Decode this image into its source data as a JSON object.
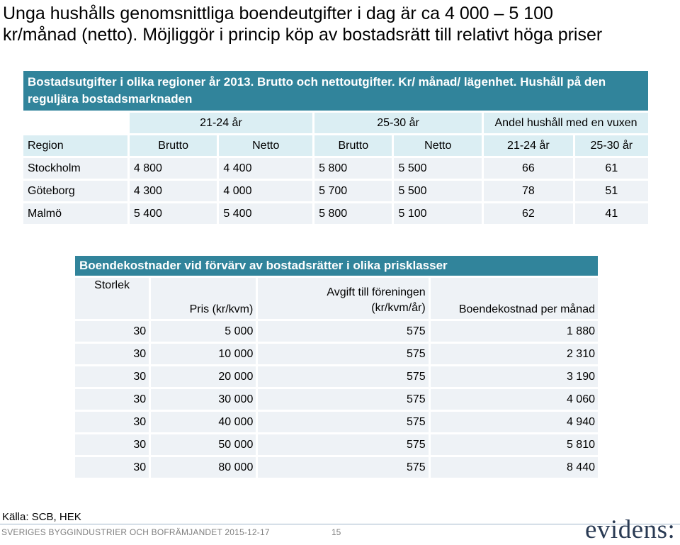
{
  "title": {
    "line1": "Unga hushålls genomsnittliga boendeutgifter i dag är ca 4 000 – 5 100",
    "line2": "kr/månad (netto). Möjliggör i princip köp av bostadsrätt till relativt höga priser"
  },
  "table1": {
    "caption": "Bostadsutgifter i olika regioner år 2013. Brutto och nettoutgifter. Kr/ månad/ lägenhet. Hushåll på den reguljära bostadsmarknaden",
    "group_headers": [
      "21-24 år",
      "25-30 år",
      "Andel hushåll med en vuxen"
    ],
    "columns": [
      "Region",
      "Brutto",
      "Netto",
      "Brutto",
      "Netto",
      "21-24 år",
      "25-30 år"
    ],
    "rows": [
      [
        "Stockholm",
        "4 800",
        "4 400",
        "5 800",
        "5 500",
        "66",
        "61"
      ],
      [
        "Göteborg",
        "4 300",
        "4 000",
        "5 700",
        "5 500",
        "78",
        "51"
      ],
      [
        "Malmö",
        "5 400",
        "5 400",
        "5 800",
        "5 100",
        "62",
        "41"
      ]
    ]
  },
  "table2": {
    "caption": "Boendekostnader vid förvärv av bostadsrätter i olika prisklasser",
    "columns": {
      "size": "Storlek",
      "price": "Pris (kr/kvm)",
      "fee_line1": "Avgift till föreningen",
      "fee_line2": "(kr/kvm/år)",
      "cost": "Boendekostnad per månad"
    },
    "rows": [
      [
        "30",
        "5 000",
        "575",
        "1 880"
      ],
      [
        "30",
        "10 000",
        "575",
        "2 310"
      ],
      [
        "30",
        "20 000",
        "575",
        "3 190"
      ],
      [
        "30",
        "30 000",
        "575",
        "4 060"
      ],
      [
        "30",
        "40 000",
        "575",
        "4 940"
      ],
      [
        "30",
        "50 000",
        "575",
        "5 810"
      ],
      [
        "30",
        "80 000",
        "575",
        "8 440"
      ]
    ]
  },
  "source": "Källa: SCB, HEK",
  "footer": {
    "text": "SVERIGES BYGGINDUSTRIER OCH BOFRÄMJANDET 2015-12-17",
    "page": "15"
  },
  "logo": "evidens:"
}
